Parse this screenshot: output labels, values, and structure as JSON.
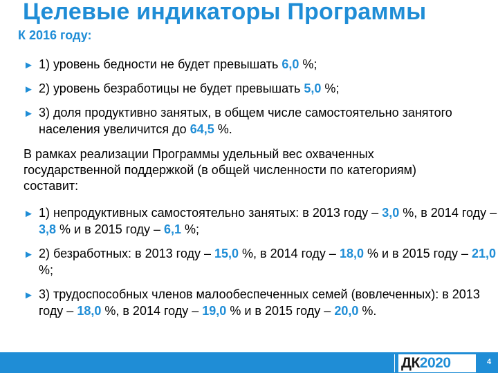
{
  "title": "Целевые индикаторы Программы",
  "subtitle": "К 2016 году:",
  "targets": [
    {
      "pre": "1) уровень бедности не будет превышать ",
      "value": "6,0",
      "post": " %;"
    },
    {
      "pre": "2) уровень безработицы не будет превышать ",
      "value": "5,0",
      "post": " %;"
    },
    {
      "pre": "3) доля продуктивно занятых, в общем числе самостоятельно занятого населения увеличится до ",
      "value": "64,5",
      "post": " %."
    }
  ],
  "paragraph": "В рамках реализации Программы удельный вес охваченных государственной поддержкой (в общей численности по категориям) составит:",
  "categories": [
    {
      "p1": "1) непродуктивных самостоятельно занятых: в 2013 году – ",
      "v1": "3,0",
      "p2": " %, в 2014 году – ",
      "v2": "3,8",
      "p3": " % и в 2015 году – ",
      "v3": "6,1",
      "p4": " %;"
    },
    {
      "p1": "2) безработных: в 2013 году – ",
      "v1": "15,0",
      "p2": " %, в 2014 году – ",
      "v2": "18,0",
      "p3": " % и в 2015 году – ",
      "v3": "21,0",
      "p4": " %;"
    },
    {
      "p1": "3) трудоспособных членов малообеспеченных семей (вовлеченных):  в 2013 году – ",
      "v1": "18,0",
      "p2": " %, в 2014 году – ",
      "v2": "19,0",
      "p3": " %  и в 2015 году – ",
      "v3": "20,0",
      "p4": " %."
    }
  ],
  "bullet_glyph": "►",
  "footer": {
    "logo_prefix": "ДК",
    "logo_number": "2020",
    "slide_number": "4"
  },
  "colors": {
    "accent": "#1f8dd6",
    "text": "#000000",
    "background": "#ffffff"
  }
}
